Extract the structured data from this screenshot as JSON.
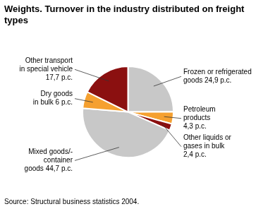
{
  "chart_data": {
    "type": "pie",
    "title": "Weights. Turnover in the industry distributed on freight\ntypes",
    "categories": [
      "Frozen or refrigerated\ngoods 24,9 p.c.",
      "Petroleum\nproducts\n4,3 p.c.",
      "Other liquids or\ngases in bulk\n2,4 p.c.",
      "Mixed goods/-\ncontainer\ngoods 44,7 p.c.",
      "Dry goods\nin bulk 6 p.c.",
      "Other transport\nin special vehicle\n17,7 p.c."
    ],
    "values": [
      24.9,
      4.3,
      2.4,
      44.7,
      6.0,
      17.7
    ],
    "colors": [
      "#c8c8c8",
      "#f5a030",
      "#8b1010",
      "#c8c8c8",
      "#f5a030",
      "#8b1010"
    ],
    "annotations": [
      "Source: Structural business statistics 2004."
    ],
    "legend": false
  }
}
